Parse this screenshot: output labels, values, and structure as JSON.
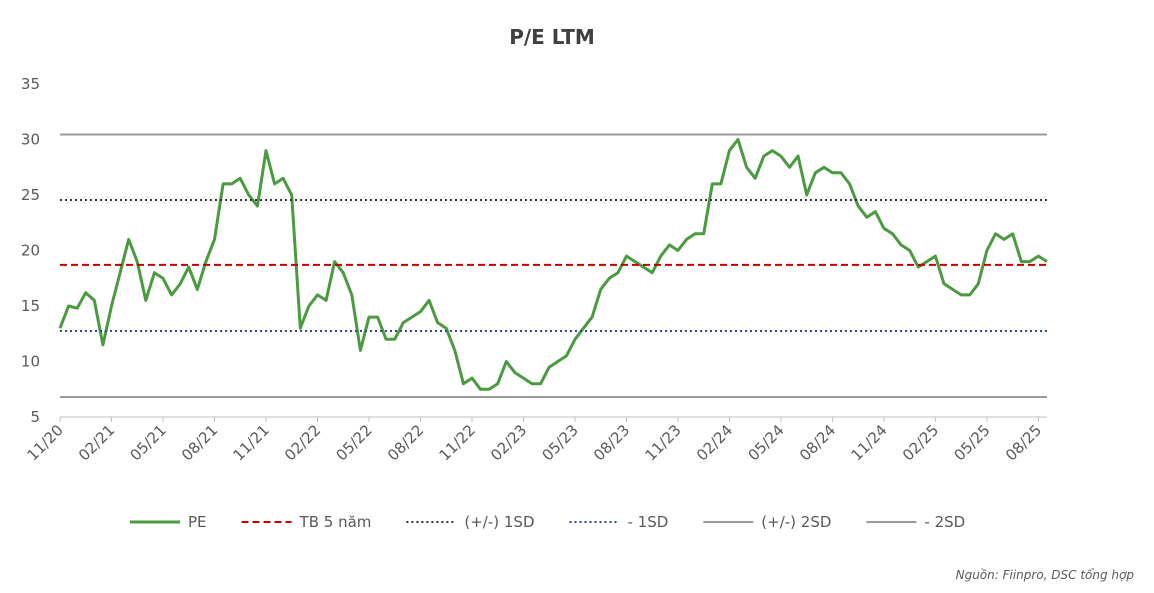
{
  "chart_data": {
    "type": "line",
    "title": "P/E LTM",
    "categories": [
      "11/20",
      null,
      null,
      null,
      null,
      null,
      "02/21",
      null,
      null,
      null,
      null,
      null,
      "05/21",
      null,
      null,
      null,
      null,
      null,
      "08/21",
      null,
      null,
      null,
      null,
      null,
      "11/21",
      null,
      null,
      null,
      null,
      null,
      "02/22",
      null,
      null,
      null,
      null,
      null,
      "05/22",
      null,
      null,
      null,
      null,
      null,
      "08/22",
      null,
      null,
      null,
      null,
      null,
      "11/22",
      null,
      null,
      null,
      null,
      null,
      "02/23",
      null,
      null,
      null,
      null,
      null,
      "05/23",
      null,
      null,
      null,
      null,
      null,
      "08/23",
      null,
      null,
      null,
      null,
      null,
      "11/23",
      null,
      null,
      null,
      null,
      null,
      "02/24",
      null,
      null,
      null,
      null,
      null,
      "05/24",
      null,
      null,
      null,
      null,
      null,
      "08/24",
      null,
      null,
      null,
      null,
      null,
      "11/24",
      null,
      null,
      null,
      null,
      null,
      "02/25",
      null,
      null,
      null,
      null,
      null,
      "05/25",
      null,
      null,
      null,
      null,
      null,
      "08/25",
      null
    ],
    "series": [
      {
        "name": "PE",
        "color": "#4a9a3f",
        "style": "solid",
        "values": [
          13,
          15,
          14.8,
          16.2,
          15.5,
          11.5,
          15,
          18,
          21,
          19,
          15.5,
          18,
          17.5,
          16,
          17,
          18.5,
          16.5,
          19,
          21,
          26,
          26,
          26.5,
          25,
          24,
          29,
          26,
          26.5,
          25,
          13,
          15,
          16,
          15.5,
          19,
          18,
          16,
          11,
          14,
          14,
          12,
          12,
          13.5,
          14,
          14.5,
          15.5,
          13.5,
          13,
          11,
          8,
          8.5,
          7.5,
          7.5,
          8,
          10,
          9,
          8.5,
          8,
          8,
          9.5,
          10,
          10.5,
          12,
          13,
          14,
          16.5,
          17.5,
          18,
          19.5,
          19,
          18.5,
          18,
          19.5,
          20.5,
          20,
          21,
          21.5,
          21.5,
          26,
          26,
          29,
          30,
          27.5,
          26.5,
          28.5,
          29,
          28.5,
          27.5,
          28.5,
          25,
          27,
          27.5,
          27,
          27,
          26,
          24,
          23,
          23.5,
          22,
          21.5,
          20.5,
          20,
          18.5,
          19,
          19.5,
          17,
          16.5,
          16,
          16,
          17,
          20,
          21.5,
          21,
          21.5,
          19,
          19,
          19.5,
          19
        ]
      },
      {
        "name": "TB 5 năm",
        "color": "#c00000",
        "style": "dashed",
        "value": 18.7
      },
      {
        "name": "(+/-) 1SD",
        "color": "#333333",
        "style": "dotted",
        "value": 24.55
      },
      {
        "name": "- 1SD",
        "color": "#2f4a7f",
        "style": "dotted",
        "value": 12.75
      },
      {
        "name": "(+/-) 2SD",
        "color": "#9a9a9a",
        "style": "solid",
        "value": 30.45
      },
      {
        "name": "- 2SD",
        "color": "#9a9a9a",
        "style": "solid",
        "value": 6.8
      }
    ],
    "ylim": [
      5,
      35
    ],
    "yticks": [
      5,
      10,
      15,
      20,
      25,
      30,
      35
    ],
    "grid": false,
    "note": "Nguồn: Fiinpro, DSC tổng hợp"
  }
}
